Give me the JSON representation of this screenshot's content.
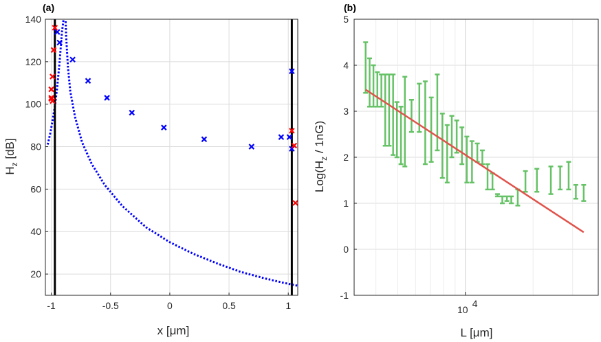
{
  "chart_data": [
    {
      "panel_label": "(a)",
      "type": "scatter",
      "xlabel": "x [μm]",
      "ylabel_main": "H",
      "ylabel_sub": "z",
      "ylabel_tail": " [dB]",
      "xlim": [
        -1.05,
        1.08
      ],
      "ylim": [
        10,
        140
      ],
      "xticks": [
        -1,
        -0.5,
        0,
        0.5,
        1
      ],
      "xtick_labels": [
        "-1",
        "-0.5",
        "0",
        "0.5",
        "1"
      ],
      "yticks": [
        20,
        40,
        60,
        80,
        100,
        120,
        140
      ],
      "ytick_labels": [
        "20",
        "40",
        "60",
        "80",
        "100",
        "120",
        "140"
      ],
      "grid": true,
      "vertical_lines": [
        -0.97,
        1.03
      ],
      "series": [
        {
          "color": "#0000ff",
          "marker": "x",
          "points": [
            [
              -0.95,
              134
            ],
            [
              -0.93,
              129
            ],
            [
              -0.82,
              121
            ],
            [
              -0.69,
              111
            ],
            [
              -0.53,
              103
            ],
            [
              -0.32,
              96
            ],
            [
              -0.05,
              89
            ],
            [
              0.29,
              83.5
            ],
            [
              0.69,
              80
            ],
            [
              0.94,
              84.5
            ],
            [
              1.01,
              84.5
            ],
            [
              1.03,
              115.5
            ],
            [
              1.03,
              79
            ]
          ]
        },
        {
          "color": "#ff0000",
          "marker": "x",
          "points": [
            [
              -0.97,
              136
            ],
            [
              -0.98,
              125.5
            ],
            [
              -0.99,
              113
            ],
            [
              -1.0,
              107
            ],
            [
              -1.0,
              103
            ],
            [
              -0.99,
              101.5
            ],
            [
              -1.0,
              102.5
            ],
            [
              1.03,
              87.5
            ],
            [
              1.05,
              80.5
            ],
            [
              1.06,
              53.5
            ]
          ]
        }
      ],
      "curves": [
        {
          "color": "#0000ff",
          "style": "dotted",
          "points": [
            [
              -1.03,
              81
            ],
            [
              -1.01,
              86
            ],
            [
              -0.99,
              92
            ],
            [
              -0.97,
              99
            ],
            [
              -0.95,
              108
            ],
            [
              -0.93,
              120
            ],
            [
              -0.91,
              134
            ],
            [
              -0.895,
              141
            ]
          ]
        },
        {
          "color": "#0000ff",
          "style": "dotted",
          "points": [
            [
              -0.88,
              141
            ],
            [
              -0.875,
              132
            ],
            [
              -0.86,
              118
            ],
            [
              -0.84,
              106
            ],
            [
              -0.8,
              94
            ],
            [
              -0.74,
              82
            ],
            [
              -0.66,
              72
            ],
            [
              -0.55,
              62
            ],
            [
              -0.4,
              52
            ],
            [
              -0.2,
              42
            ],
            [
              0.0,
              35
            ],
            [
              0.2,
              29.5
            ],
            [
              0.4,
              25
            ],
            [
              0.6,
              21
            ],
            [
              0.8,
              18
            ],
            [
              0.95,
              16
            ],
            [
              1.08,
              14.5
            ]
          ]
        }
      ]
    },
    {
      "panel_label": "(b)",
      "type": "errorbar",
      "xlabel": "L [μm]",
      "ylabel_main": "Log(H",
      "ylabel_sub": "z",
      "ylabel_tail": " / 1nG)",
      "xscale": "log",
      "xlim": [
        3200,
        39000
      ],
      "ylim": [
        -1,
        5
      ],
      "xticks": [
        10000
      ],
      "xtick_base": "10",
      "xtick_exp": "4",
      "yticks": [
        -1,
        0,
        1,
        2,
        3,
        4,
        5
      ],
      "ytick_labels": [
        "-1",
        "0",
        "1",
        "2",
        "3",
        "4",
        "5"
      ],
      "grid": true,
      "errorbar_color": "#66c266",
      "fit_line": {
        "color": "#e0524a",
        "x": [
          3600,
          33600
        ],
        "y": [
          3.47,
          0.37
        ]
      },
      "errorbars": [
        {
          "x": 3600,
          "low": 3.4,
          "high": 4.5
        },
        {
          "x": 3750,
          "low": 3.1,
          "high": 4.15
        },
        {
          "x": 3900,
          "low": 3.1,
          "high": 4.0
        },
        {
          "x": 4060,
          "low": 3.1,
          "high": 3.85
        },
        {
          "x": 4230,
          "low": 3.1,
          "high": 3.8
        },
        {
          "x": 4400,
          "low": 2.25,
          "high": 3.8
        },
        {
          "x": 4580,
          "low": 2.25,
          "high": 3.8
        },
        {
          "x": 4770,
          "low": 2.05,
          "high": 3.8
        },
        {
          "x": 4960,
          "low": 2.0,
          "high": 3.2
        },
        {
          "x": 5170,
          "low": 1.85,
          "high": 3.1
        },
        {
          "x": 5380,
          "low": 1.8,
          "high": 3.75
        },
        {
          "x": 5760,
          "low": 2.55,
          "high": 3.25
        },
        {
          "x": 6240,
          "low": 2.55,
          "high": 3.6
        },
        {
          "x": 6630,
          "low": 1.85,
          "high": 3.65
        },
        {
          "x": 7050,
          "low": 1.9,
          "high": 3.3
        },
        {
          "x": 7500,
          "low": 2.15,
          "high": 3.8
        },
        {
          "x": 7900,
          "low": 1.55,
          "high": 2.95
        },
        {
          "x": 8300,
          "low": 1.45,
          "high": 2.7
        },
        {
          "x": 8700,
          "low": 2.0,
          "high": 2.9
        },
        {
          "x": 9150,
          "low": 2.1,
          "high": 2.8
        },
        {
          "x": 9650,
          "low": 1.85,
          "high": 2.65
        },
        {
          "x": 10150,
          "low": 1.45,
          "high": 2.45
        },
        {
          "x": 10700,
          "low": 1.45,
          "high": 2.35
        },
        {
          "x": 11300,
          "low": 1.9,
          "high": 2.3
        },
        {
          "x": 11900,
          "low": 1.85,
          "high": 2.15
        },
        {
          "x": 12550,
          "low": 1.3,
          "high": 1.85
        },
        {
          "x": 13200,
          "low": 1.3,
          "high": 1.65
        },
        {
          "x": 13900,
          "low": 1.15,
          "high": 1.2
        },
        {
          "x": 14600,
          "low": 1.0,
          "high": 1.15
        },
        {
          "x": 15300,
          "low": 1.05,
          "high": 1.15
        },
        {
          "x": 16000,
          "low": 1.0,
          "high": 1.15
        },
        {
          "x": 17100,
          "low": 0.95,
          "high": 1.3
        },
        {
          "x": 18500,
          "low": 1.25,
          "high": 1.7
        },
        {
          "x": 20800,
          "low": 1.25,
          "high": 1.75
        },
        {
          "x": 24000,
          "low": 1.2,
          "high": 1.8
        },
        {
          "x": 26400,
          "low": 1.3,
          "high": 1.8
        },
        {
          "x": 28800,
          "low": 1.3,
          "high": 1.9
        },
        {
          "x": 31000,
          "low": 1.1,
          "high": 1.4
        },
        {
          "x": 33600,
          "low": 1.05,
          "high": 1.4
        }
      ]
    }
  ]
}
